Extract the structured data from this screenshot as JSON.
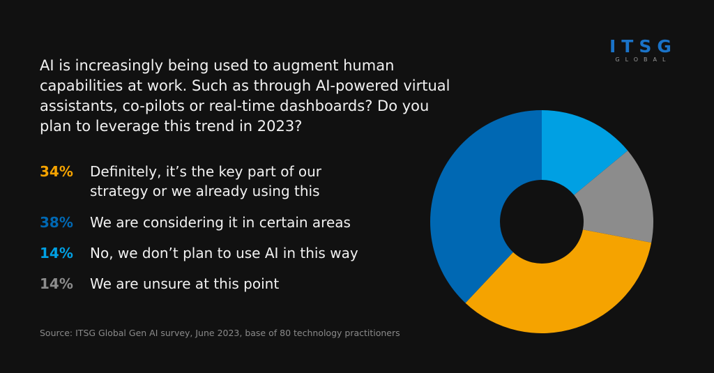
{
  "logo": {
    "name": "ITSG",
    "sub": "GLOBAL"
  },
  "chart_data": {
    "type": "pie",
    "title": "AI is increasingly being used to augment human capabilities at work. Such as through AI-powered virtual assistants, co-pilots or real-time dashboards? Do you plan to leverage this trend in 2023?",
    "categories": [
      "Definitely, it’s the key part of our strategy or we already using this",
      "We are considering it in certain areas",
      "No, we don’t plan to use AI in this way",
      "We are unsure at this point"
    ],
    "values": [
      34,
      38,
      14,
      14
    ],
    "value_labels": [
      "34%",
      "38%",
      "14%",
      "14%"
    ],
    "colors": [
      "#f5a300",
      "#0068b3",
      "#00a0e3",
      "#8c8c8c"
    ],
    "source": "Source: ITSG Global Gen AI survey, June 2023, base of 80 technology practitioners"
  }
}
